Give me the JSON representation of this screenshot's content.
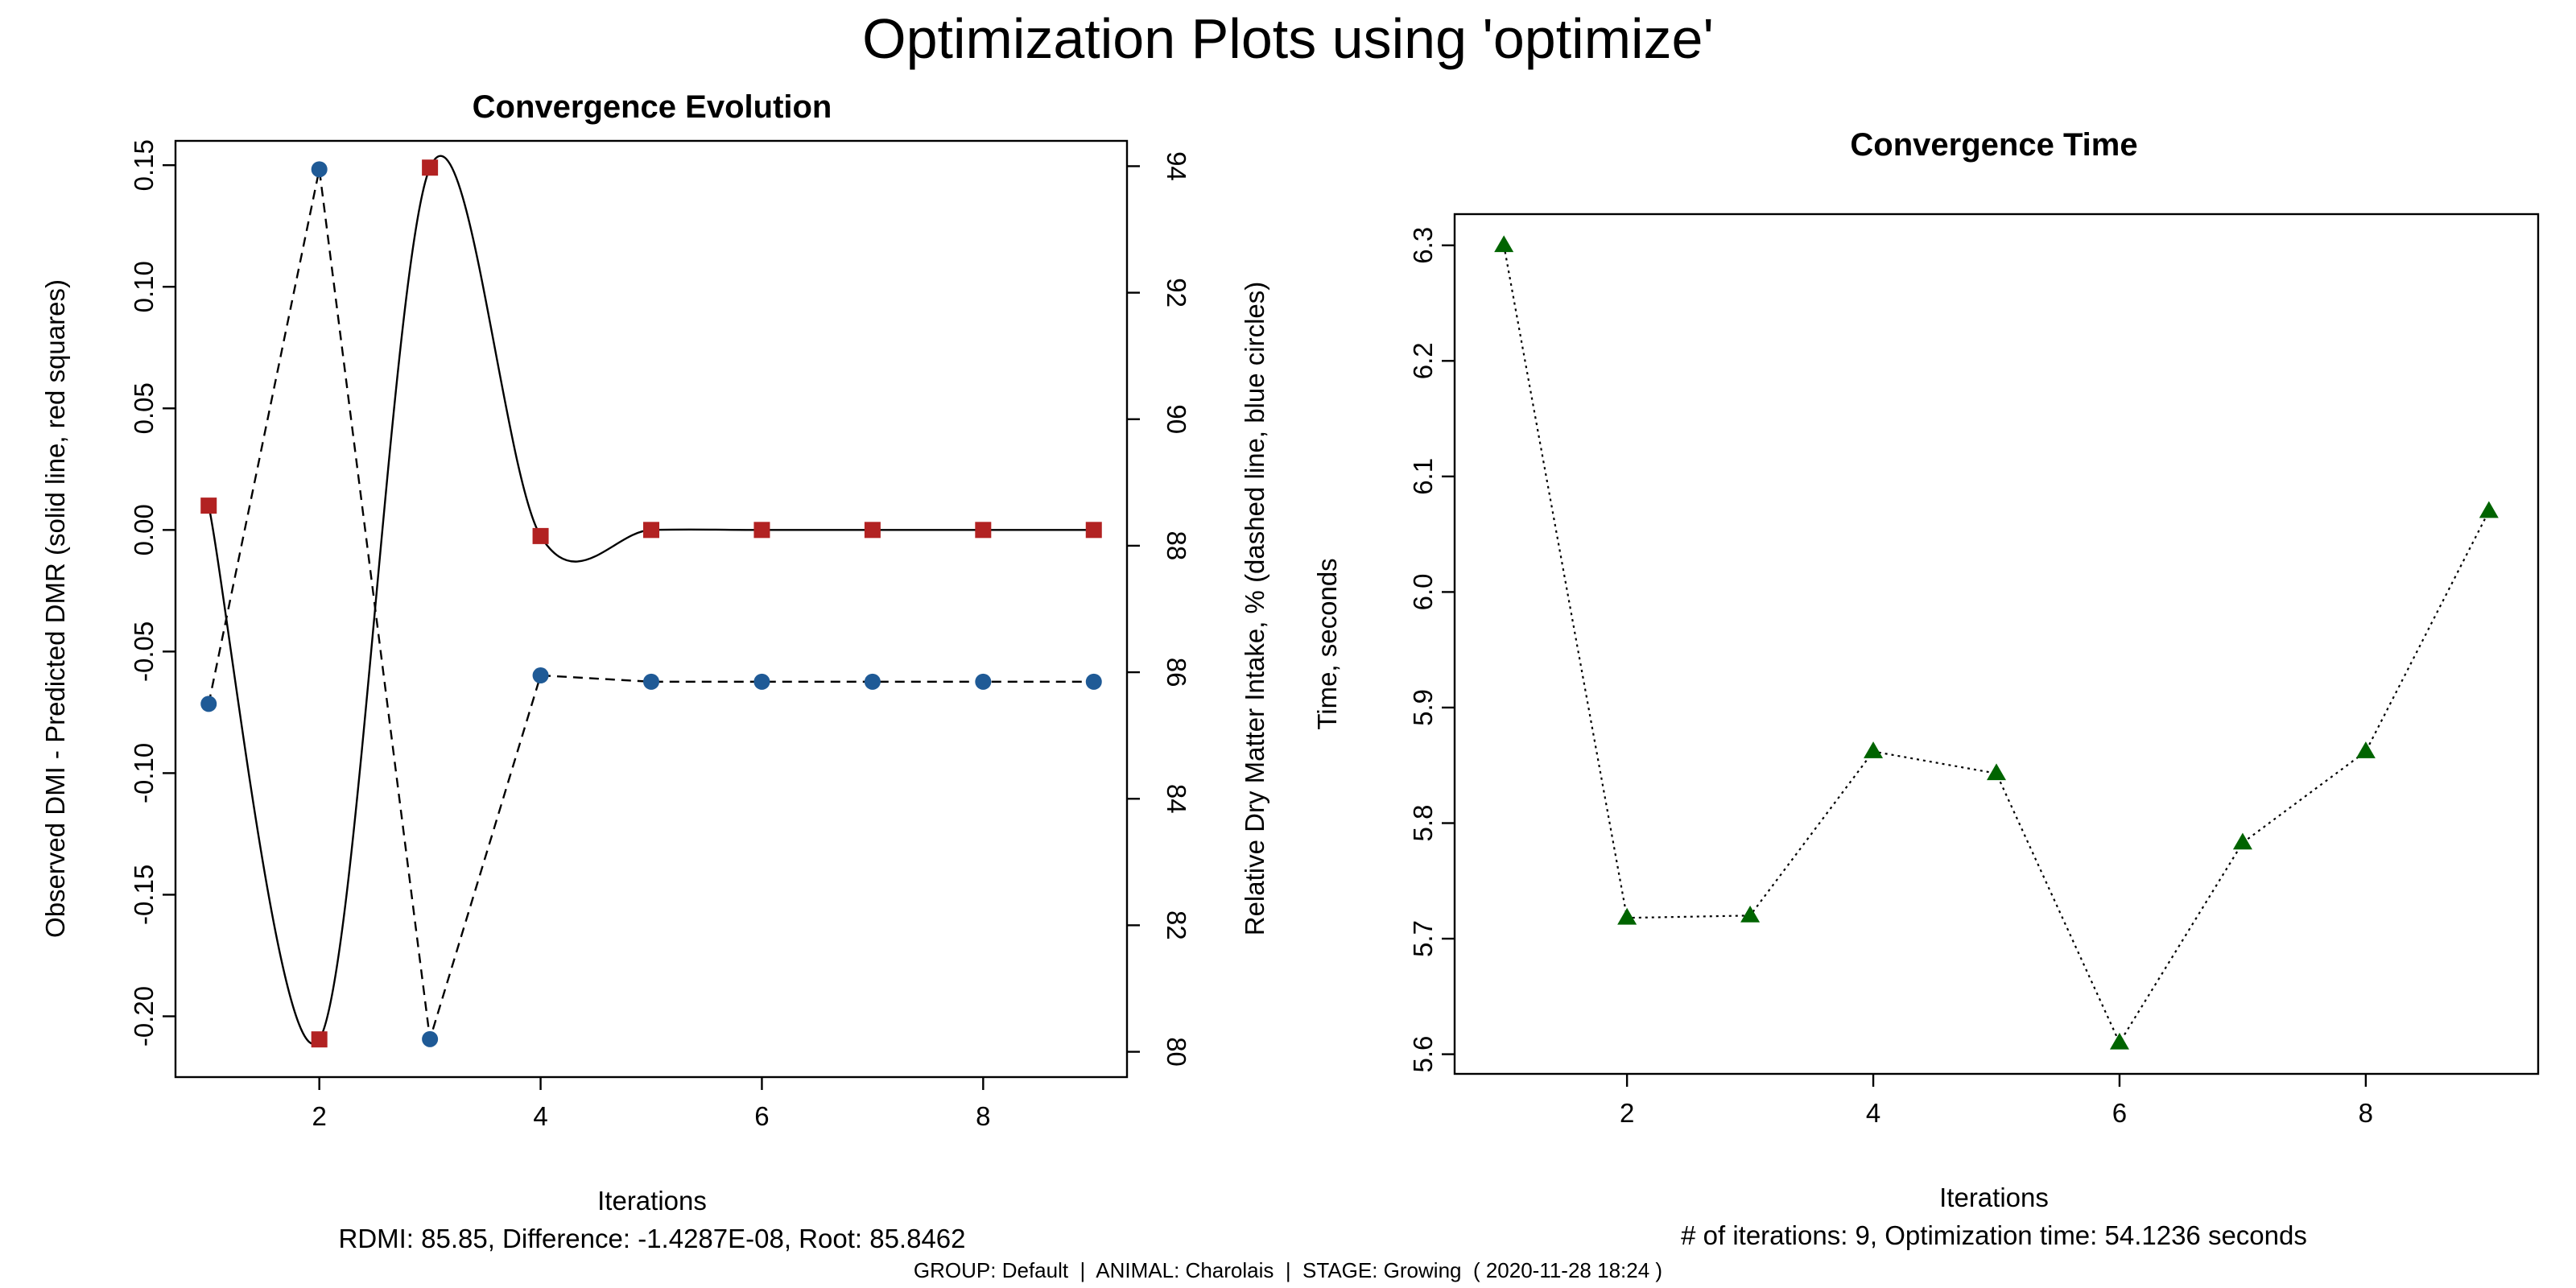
{
  "figure": {
    "title": "Optimization Plots using 'optimize'",
    "footer": "GROUP: Default  |  ANIMAL: Charolais  |  STAGE: Growing  ( 2020-11-28 18:24 )"
  },
  "chart_data": [
    {
      "type": "line",
      "title": "Convergence Evolution",
      "xlabel": "Iterations",
      "subtitle": "RDMI:  85.85, Difference: -1.4287E-08, Root:  85.8462",
      "ylabel": "Observed DMI - Predicted DMR (solid line, red squares)",
      "y2label": "Relative Dry Matter Intake, % (dashed line, blue circles)",
      "xlim": [
        0.7,
        9.3
      ],
      "ylim": [
        -0.225,
        0.16
      ],
      "y2lim": [
        79.6,
        94.4
      ],
      "x": [
        1,
        2,
        3,
        4,
        5,
        6,
        7,
        8,
        9
      ],
      "xticks": [
        "2",
        "4",
        "6",
        "8"
      ],
      "yticks": [
        "-0.20",
        "-0.15",
        "-0.10",
        "-0.05",
        "0.00",
        "0.05",
        "0.10",
        "0.15"
      ],
      "y2ticks": [
        "80",
        "82",
        "84",
        "86",
        "88",
        "90",
        "92",
        "94"
      ],
      "grid": false,
      "series": [
        {
          "values": [
            0.01,
            -0.2095,
            0.149,
            -0.0025,
            0.0,
            0.0,
            0.0,
            0.0,
            0.0
          ],
          "color": "#B22222",
          "line": "solid (smooth)",
          "marker": "square",
          "axis": "left"
        },
        {
          "values": [
            85.5,
            93.95,
            80.2,
            85.95,
            85.85,
            85.85,
            85.85,
            85.85,
            85.85
          ],
          "color": "#1F5A96",
          "line": "dashed",
          "marker": "circle",
          "axis": "right"
        }
      ]
    },
    {
      "type": "line",
      "title": "Convergence Time",
      "xlabel": "Iterations",
      "subtitle": "# of iterations: 9, Optimization time:  54.1236 seconds",
      "ylabel": "Time, seconds",
      "xlim": [
        0.6,
        9.4
      ],
      "ylim": [
        5.583,
        6.327
      ],
      "x": [
        1,
        2,
        3,
        4,
        5,
        6,
        7,
        8,
        9
      ],
      "xticks": [
        "2",
        "4",
        "6",
        "8"
      ],
      "yticks": [
        "5.6",
        "5.7",
        "5.8",
        "5.9",
        "6.0",
        "6.1",
        "6.2",
        "6.3"
      ],
      "grid": false,
      "series": [
        {
          "values": [
            6.3,
            5.718,
            5.72,
            5.862,
            5.843,
            5.61,
            5.783,
            5.862,
            6.07
          ],
          "color": "#006400",
          "line": "dotted",
          "marker": "triangle"
        }
      ]
    }
  ]
}
